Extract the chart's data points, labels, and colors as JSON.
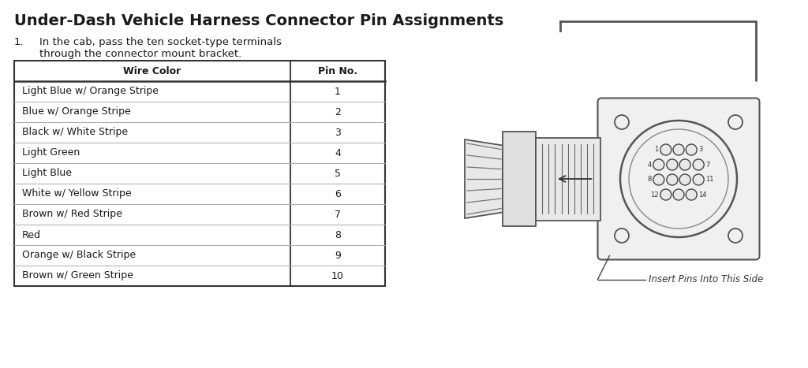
{
  "title": "Under-Dash Vehicle Harness Connector Pin Assignments",
  "instruction_number": "1.",
  "instruction_text": "In the cab, pass the ten socket-type terminals\nthrough the connector mount bracket.",
  "table_headers": [
    "Wire Color",
    "Pin No."
  ],
  "table_rows": [
    [
      "Light Blue w/ Orange Stripe",
      "1"
    ],
    [
      "Blue w/ Orange Stripe",
      "2"
    ],
    [
      "Black w/ White Stripe",
      "3"
    ],
    [
      "Light Green",
      "4"
    ],
    [
      "Light Blue",
      "5"
    ],
    [
      "White w/ Yellow Stripe",
      "6"
    ],
    [
      "Brown w/ Red Stripe",
      "7"
    ],
    [
      "Red",
      "8"
    ],
    [
      "Orange w/ Black Stripe",
      "9"
    ],
    [
      "Brown w/ Green Stripe",
      "10"
    ]
  ],
  "connector_label": "Insert Pins Into This Side",
  "bg_color": "#ffffff",
  "text_color": "#1a1a1a",
  "line_color": "#555555",
  "title_fontsize": 14,
  "body_fontsize": 9.5,
  "table_fontsize": 9
}
